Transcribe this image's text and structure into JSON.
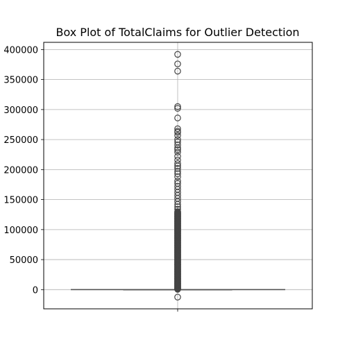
{
  "chart_data": {
    "type": "box",
    "title": "Box Plot of TotalClaims for Outlier Detection",
    "xlabel": "",
    "ylabel": "",
    "ylim": [
      -32000,
      412000
    ],
    "grid": true,
    "colors": {
      "box": "#555555",
      "outlier": "#444444",
      "grid": "#b0b0b0",
      "axis": "#000000"
    },
    "y_ticks": [
      0,
      50000,
      100000,
      150000,
      200000,
      250000,
      300000,
      350000,
      400000
    ],
    "y_tick_labels": [
      "0",
      "50000",
      "100000",
      "150000",
      "200000",
      "250000",
      "300000",
      "350000",
      "400000"
    ],
    "series": [
      {
        "median": 0,
        "q1": 0,
        "q3": 0,
        "whisker_low": 0,
        "whisker_high": 0,
        "outliers": [
          -12500,
          392000,
          376000,
          364000,
          305000,
          302000,
          286000,
          268000,
          264000,
          262000,
          257000,
          250000,
          246000,
          241000,
          236000,
          233000,
          229000,
          222000,
          216000,
          210000,
          206000,
          202000,
          197000,
          193000,
          188000,
          181000,
          177000,
          172000,
          167000,
          162000,
          157000,
          152000,
          147000,
          142000,
          138000,
          134000,
          130000,
          126000,
          122000,
          118000,
          114000,
          110000,
          106000,
          102000,
          98000,
          94000,
          90000,
          86000,
          82000,
          78000,
          74000,
          70000,
          66000,
          62000,
          58000,
          54000,
          50000,
          46000,
          42000,
          38000,
          34000,
          30000,
          26000,
          22000,
          18000,
          14000,
          10000,
          6000,
          3000,
          1500
        ]
      }
    ]
  }
}
